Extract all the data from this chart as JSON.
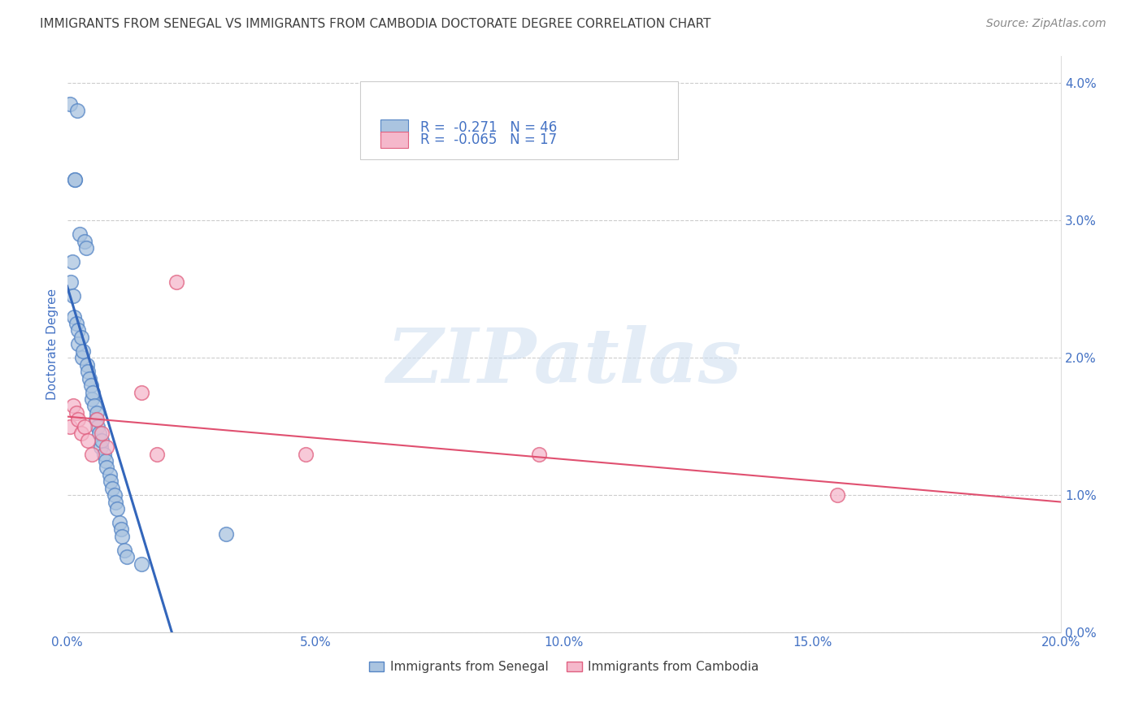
{
  "title": "IMMIGRANTS FROM SENEGAL VS IMMIGRANTS FROM CAMBODIA DOCTORATE DEGREE CORRELATION CHART",
  "source": "Source: ZipAtlas.com",
  "ylabel_left": "Doctorate Degree",
  "xlabel_vals": [
    0.0,
    5.0,
    10.0,
    15.0,
    20.0
  ],
  "ylabel_vals": [
    0.0,
    1.0,
    2.0,
    3.0,
    4.0
  ],
  "xmin": 0.0,
  "xmax": 20.0,
  "ymin": 0.0,
  "ymax": 4.2,
  "watermark_text": "ZIPatlas",
  "legend_entries": [
    {
      "label": "Immigrants from Senegal",
      "face_color": "#aac4e0",
      "edge_color": "#5585c5",
      "R": "-0.271",
      "N": "46"
    },
    {
      "label": "Immigrants from Cambodia",
      "face_color": "#f5b8cb",
      "edge_color": "#e06080",
      "R": "-0.065",
      "N": "17"
    }
  ],
  "senegal_x": [
    0.05,
    0.08,
    0.1,
    0.12,
    0.14,
    0.15,
    0.15,
    0.18,
    0.2,
    0.22,
    0.22,
    0.25,
    0.28,
    0.3,
    0.32,
    0.35,
    0.38,
    0.4,
    0.42,
    0.45,
    0.48,
    0.5,
    0.52,
    0.55,
    0.58,
    0.6,
    0.62,
    0.65,
    0.68,
    0.7,
    0.75,
    0.78,
    0.8,
    0.85,
    0.88,
    0.9,
    0.95,
    0.98,
    1.0,
    1.05,
    1.08,
    1.1,
    1.15,
    1.2,
    1.5,
    3.2
  ],
  "senegal_y": [
    3.85,
    2.55,
    2.7,
    2.45,
    2.3,
    3.3,
    3.3,
    2.25,
    3.8,
    2.2,
    2.1,
    2.9,
    2.15,
    2.0,
    2.05,
    2.85,
    2.8,
    1.95,
    1.9,
    1.85,
    1.8,
    1.7,
    1.75,
    1.65,
    1.55,
    1.6,
    1.5,
    1.45,
    1.35,
    1.4,
    1.3,
    1.25,
    1.2,
    1.15,
    1.1,
    1.05,
    1.0,
    0.95,
    0.9,
    0.8,
    0.75,
    0.7,
    0.6,
    0.55,
    0.5,
    0.72
  ],
  "cambodia_x": [
    0.05,
    0.12,
    0.18,
    0.22,
    0.28,
    0.35,
    0.42,
    0.5,
    0.6,
    0.7,
    0.8,
    1.5,
    1.8,
    2.2,
    4.8,
    9.5,
    15.5
  ],
  "cambodia_y": [
    1.5,
    1.65,
    1.6,
    1.55,
    1.45,
    1.5,
    1.4,
    1.3,
    1.55,
    1.45,
    1.35,
    1.75,
    1.3,
    2.55,
    1.3,
    1.3,
    1.0
  ],
  "senegal_line_color": "#3366bb",
  "cambodia_line_color": "#e05070",
  "title_color": "#404040",
  "source_color": "#888888",
  "axis_color": "#4472c4",
  "grid_color": "#cccccc",
  "background_color": "#ffffff",
  "title_fontsize": 11,
  "source_fontsize": 10,
  "axis_label_fontsize": 11,
  "tick_fontsize": 11,
  "legend_fontsize": 12
}
